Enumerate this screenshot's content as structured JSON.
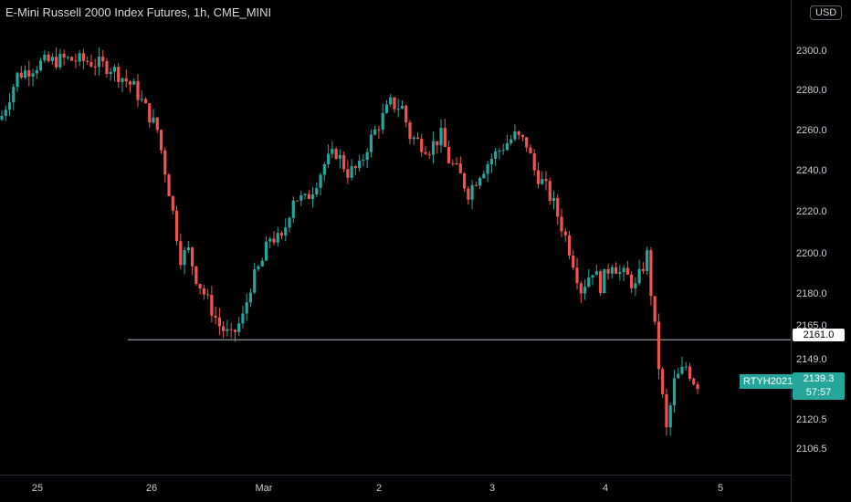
{
  "header": {
    "title": "E-Mini Russell 2000 Index Futures, 1h, CME_MINI",
    "currency": "USD"
  },
  "colors": {
    "up": "#26a69a",
    "down": "#ef5350",
    "background": "#000000",
    "hline": "#b2b5be"
  },
  "chart_data": {
    "type": "candlestick",
    "symbol": "RTYH2021",
    "interval": "1h",
    "last_price": "2139.3",
    "countdown": "57:57",
    "horizontal_line": {
      "value": 2161.0,
      "label": "2161.0"
    },
    "y_ticks": [
      "2106.5",
      "2120.5",
      "2139.3",
      "2149.0",
      "2165.0",
      "2180.0",
      "2200.0",
      "2220.0",
      "2240.0",
      "2260.0",
      "2280.0",
      "2300.0"
    ],
    "x_ticks": [
      "25",
      "26",
      "Mar",
      "2",
      "3",
      "4",
      "5"
    ],
    "price_path": [
      [
        0,
        2272
      ],
      [
        4,
        2292
      ],
      [
        10,
        2298
      ],
      [
        16,
        2300
      ],
      [
        22,
        2299
      ],
      [
        28,
        2296
      ],
      [
        34,
        2286
      ],
      [
        40,
        2265
      ],
      [
        43,
        2235
      ],
      [
        46,
        2202
      ],
      [
        48,
        2205
      ],
      [
        50,
        2192
      ],
      [
        53,
        2180
      ],
      [
        56,
        2168
      ],
      [
        59,
        2162
      ],
      [
        62,
        2172
      ],
      [
        64,
        2188
      ],
      [
        67,
        2200
      ],
      [
        69,
        2212
      ],
      [
        72,
        2210
      ],
      [
        75,
        2232
      ],
      [
        78,
        2230
      ],
      [
        80,
        2236
      ],
      [
        83,
        2248
      ],
      [
        86,
        2254
      ],
      [
        89,
        2244
      ],
      [
        92,
        2246
      ],
      [
        94,
        2257
      ],
      [
        97,
        2268
      ],
      [
        100,
        2278
      ],
      [
        103,
        2276
      ],
      [
        105,
        2262
      ],
      [
        108,
        2258
      ],
      [
        110,
        2256
      ],
      [
        113,
        2262
      ],
      [
        115,
        2250
      ],
      [
        118,
        2242
      ],
      [
        120,
        2234
      ],
      [
        123,
        2244
      ],
      [
        126,
        2251
      ],
      [
        129,
        2257
      ],
      [
        132,
        2262
      ],
      [
        135,
        2258
      ],
      [
        137,
        2245
      ],
      [
        140,
        2236
      ],
      [
        142,
        2228
      ],
      [
        145,
        2212
      ],
      [
        147,
        2200
      ],
      [
        149,
        2186
      ],
      [
        152,
        2196
      ],
      [
        154,
        2188
      ],
      [
        157,
        2200
      ],
      [
        159,
        2194
      ],
      [
        161,
        2192
      ],
      [
        163,
        2187
      ],
      [
        166,
        2203
      ],
      [
        169,
        2148
      ],
      [
        171,
        2116
      ],
      [
        173,
        2140
      ],
      [
        176,
        2148
      ],
      [
        178,
        2141
      ],
      [
        179,
        2139.3
      ]
    ],
    "bar_count": 180
  }
}
